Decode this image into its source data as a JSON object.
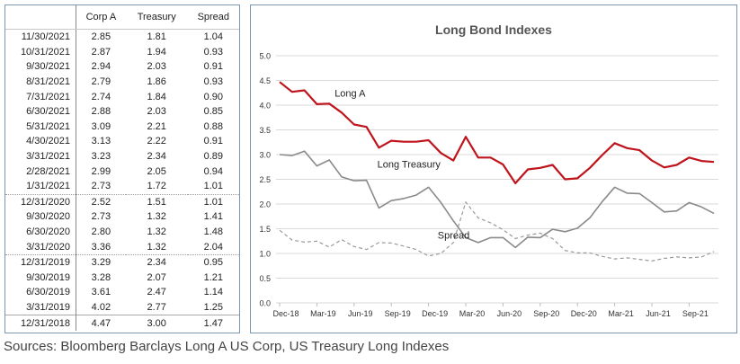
{
  "table": {
    "headers": [
      "",
      "Corp A",
      "Treasury",
      "Spread"
    ],
    "rows": [
      {
        "date": "11/30/2021",
        "corp_a": "2.85",
        "treasury": "1.81",
        "spread": "1.04",
        "sep": ""
      },
      {
        "date": "10/31/2021",
        "corp_a": "2.87",
        "treasury": "1.94",
        "spread": "0.93",
        "sep": ""
      },
      {
        "date": "9/30/2021",
        "corp_a": "2.94",
        "treasury": "2.03",
        "spread": "0.91",
        "sep": ""
      },
      {
        "date": "8/31/2021",
        "corp_a": "2.79",
        "treasury": "1.86",
        "spread": "0.93",
        "sep": ""
      },
      {
        "date": "7/31/2021",
        "corp_a": "2.74",
        "treasury": "1.84",
        "spread": "0.90",
        "sep": ""
      },
      {
        "date": "6/30/2021",
        "corp_a": "2.88",
        "treasury": "2.03",
        "spread": "0.85",
        "sep": ""
      },
      {
        "date": "5/31/2021",
        "corp_a": "3.09",
        "treasury": "2.21",
        "spread": "0.88",
        "sep": ""
      },
      {
        "date": "4/30/2021",
        "corp_a": "3.13",
        "treasury": "2.22",
        "spread": "0.91",
        "sep": ""
      },
      {
        "date": "3/31/2021",
        "corp_a": "3.23",
        "treasury": "2.34",
        "spread": "0.89",
        "sep": ""
      },
      {
        "date": "2/28/2021",
        "corp_a": "2.99",
        "treasury": "2.05",
        "spread": "0.94",
        "sep": ""
      },
      {
        "date": "1/31/2021",
        "corp_a": "2.73",
        "treasury": "1.72",
        "spread": "1.01",
        "sep": ""
      },
      {
        "date": "12/31/2020",
        "corp_a": "2.52",
        "treasury": "1.51",
        "spread": "1.01",
        "sep": "dotted"
      },
      {
        "date": "9/30/2020",
        "corp_a": "2.73",
        "treasury": "1.32",
        "spread": "1.41",
        "sep": ""
      },
      {
        "date": "6/30/2020",
        "corp_a": "2.80",
        "treasury": "1.32",
        "spread": "1.48",
        "sep": ""
      },
      {
        "date": "3/31/2020",
        "corp_a": "3.36",
        "treasury": "1.32",
        "spread": "2.04",
        "sep": ""
      },
      {
        "date": "12/31/2019",
        "corp_a": "3.29",
        "treasury": "2.34",
        "spread": "0.95",
        "sep": "dotted"
      },
      {
        "date": "9/30/2019",
        "corp_a": "3.28",
        "treasury": "2.07",
        "spread": "1.21",
        "sep": ""
      },
      {
        "date": "6/30/2019",
        "corp_a": "3.61",
        "treasury": "2.47",
        "spread": "1.14",
        "sep": ""
      },
      {
        "date": "3/31/2019",
        "corp_a": "4.02",
        "treasury": "2.77",
        "spread": "1.25",
        "sep": ""
      },
      {
        "date": "12/31/2018",
        "corp_a": "4.47",
        "treasury": "3.00",
        "spread": "1.47",
        "sep": "solid"
      }
    ]
  },
  "chart_data": {
    "type": "line",
    "title": "Long Bond Indexes",
    "xlabel": "",
    "ylabel": "",
    "ylim": [
      0,
      5
    ],
    "yticks": [
      "0.0",
      "0.5",
      "1.0",
      "1.5",
      "2.0",
      "2.5",
      "3.0",
      "3.5",
      "4.0",
      "4.5",
      "5.0"
    ],
    "ytick_values": [
      0,
      0.5,
      1,
      1.5,
      2,
      2.5,
      3,
      3.5,
      4,
      4.5,
      5
    ],
    "xticks": [
      "Dec-18",
      "Mar-19",
      "Jun-19",
      "Sep-19",
      "Dec-19",
      "Mar-20",
      "Jun-20",
      "Sep-20",
      "Dec-20",
      "Mar-21",
      "Jun-21",
      "Sep-21"
    ],
    "xtick_month_index": [
      0,
      3,
      6,
      9,
      12,
      15,
      18,
      21,
      24,
      27,
      30,
      33
    ],
    "x_months": 36,
    "grid": true,
    "series": [
      {
        "name": "Long A",
        "label_anchor_index": 4,
        "color": "#c0141c",
        "style": "solid",
        "values": [
          4.47,
          4.27,
          4.3,
          4.02,
          4.03,
          3.85,
          3.61,
          3.56,
          3.14,
          3.28,
          3.26,
          3.26,
          3.29,
          3.03,
          2.88,
          3.36,
          2.94,
          2.94,
          2.8,
          2.42,
          2.7,
          2.73,
          2.79,
          2.5,
          2.52,
          2.73,
          2.99,
          3.23,
          3.13,
          3.09,
          2.88,
          2.74,
          2.79,
          2.94,
          2.87,
          2.85
        ]
      },
      {
        "name": "Long Treasury",
        "label_anchor_index": 7,
        "color": "#8a8a8a",
        "style": "solid",
        "values": [
          3.0,
          2.98,
          3.07,
          2.77,
          2.89,
          2.55,
          2.47,
          2.48,
          1.92,
          2.07,
          2.11,
          2.18,
          2.34,
          2.03,
          1.66,
          1.32,
          1.22,
          1.32,
          1.32,
          1.12,
          1.33,
          1.32,
          1.49,
          1.44,
          1.51,
          1.72,
          2.05,
          2.34,
          2.22,
          2.21,
          2.03,
          1.84,
          1.86,
          2.03,
          1.94,
          1.81
        ]
      },
      {
        "name": "Spread",
        "label_anchor_index": 11,
        "color": "#9a9a9a",
        "style": "dashed",
        "values": [
          1.47,
          1.27,
          1.23,
          1.25,
          1.13,
          1.28,
          1.14,
          1.08,
          1.22,
          1.21,
          1.15,
          1.08,
          0.95,
          1.0,
          1.22,
          2.04,
          1.72,
          1.62,
          1.48,
          1.3,
          1.37,
          1.41,
          1.3,
          1.06,
          1.01,
          1.01,
          0.94,
          0.89,
          0.91,
          0.88,
          0.85,
          0.9,
          0.93,
          0.91,
          0.93,
          1.04
        ]
      }
    ]
  },
  "source_note": "Sources: Bloomberg Barclays Long A US Corp, US Treasury Long Indexes"
}
